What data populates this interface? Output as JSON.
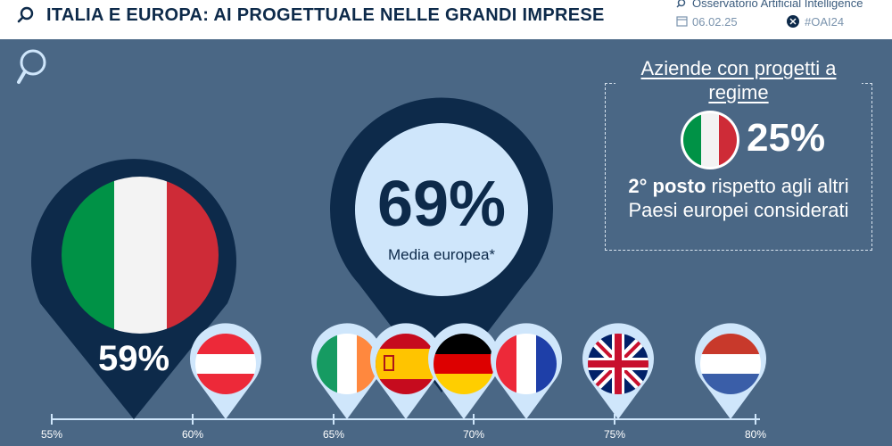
{
  "header": {
    "title": "ITALIA E EUROPA: AI PROGETTUALE NELLE GRANDI IMPRESE",
    "observatory": "Osservatorio Artificial Intelligence",
    "date": "06.02.25",
    "hashtag": "#OAI24"
  },
  "italy": {
    "value_label": "59%"
  },
  "europe": {
    "value_label": "69%",
    "caption": "Media europea*"
  },
  "panel": {
    "title": "Aziende con progetti a regime",
    "value": "25%",
    "rank": "2° posto",
    "rank_rest": " rispetto agli altri Paesi europei considerati"
  },
  "axis": {
    "ticks": [
      "55%",
      "60%",
      "65%",
      "70%",
      "75%",
      "80%"
    ],
    "range": [
      55,
      80
    ]
  },
  "countries": [
    {
      "name": "Austria",
      "flag": "austria"
    },
    {
      "name": "Irlanda",
      "flag": "ireland"
    },
    {
      "name": "Spagna",
      "flag": "spain"
    },
    {
      "name": "Germania",
      "flag": "germany"
    },
    {
      "name": "Francia",
      "flag": "france"
    },
    {
      "name": "Regno Unito",
      "flag": "uk"
    },
    {
      "name": "Paesi Bassi",
      "flag": "netherlands"
    }
  ],
  "colors": {
    "background": "#4a6785",
    "navy": "#0d2a4a",
    "light_blue": "#cfe6fb",
    "white": "#ffffff"
  }
}
